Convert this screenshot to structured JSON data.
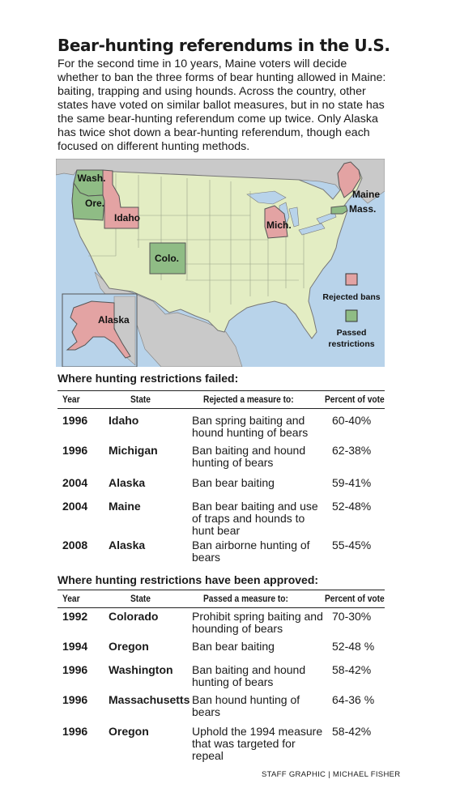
{
  "title": "Bear-hunting referendums in the U.S.",
  "intro": "For the second time in 10 years, Maine voters will decide whether to ban the three forms of bear hunting allowed in Maine: baiting, trapping and using hounds. Across the country, other states have voted on similar ballot measures, but in no state has the same bear-hunting referendum come up twice. Only Alaska has twice shot down a bear-hunting referendum, though each focused on different hunting methods.",
  "map": {
    "labels": {
      "wash": "Wash.",
      "ore": "Ore.",
      "idaho": "Idaho",
      "colo": "Colo.",
      "mich": "Mich.",
      "maine": "Maine",
      "mass": "Mass.",
      "alaska": "Alaska"
    },
    "legend": {
      "rejected": "Rejected bans",
      "passed": "Passed restrictions"
    },
    "colors": {
      "rejected": "#e3a3a3",
      "passed": "#8fbc85",
      "base": "#e3edc3",
      "water": "#b8d3ea",
      "other_land": "#c9c9c9"
    }
  },
  "chart_data": [
    {
      "type": "table",
      "title": "Where hunting restrictions failed:",
      "columns": [
        "Year",
        "State",
        "Rejected a measure to:",
        "Percent of vote"
      ],
      "rows": [
        {
          "year": "1996",
          "state": "Idaho",
          "measure": "Ban spring baiting and hound hunting of bears",
          "pct": "60-40%",
          "for": 40,
          "against": 60
        },
        {
          "year": "1996",
          "state": "Michigan",
          "measure": "Ban baiting and hound hunting of bears",
          "pct": "62-38%",
          "for": 38,
          "against": 62
        },
        {
          "year": "2004",
          "state": "Alaska",
          "measure": "Ban bear baiting",
          "pct": "59-41%",
          "for": 41,
          "against": 59
        },
        {
          "year": "2004",
          "state": "Maine",
          "measure": "Ban bear baiting and use of traps and hounds to hunt bear",
          "pct": "52-48%",
          "for": 48,
          "against": 52
        },
        {
          "year": "2008",
          "state": "Alaska",
          "measure": "Ban airborne hunting of bears",
          "pct": "55-45%",
          "for": 45,
          "against": 55
        }
      ]
    },
    {
      "type": "table",
      "title": "Where hunting restrictions have been approved:",
      "columns": [
        "Year",
        "State",
        "Passed a measure to:",
        "Percent of vote"
      ],
      "rows": [
        {
          "year": "1992",
          "state": "Colorado",
          "measure": "Prohibit spring baiting and hounding of bears",
          "pct": "70-30%",
          "for": 70,
          "against": 30
        },
        {
          "year": "1994",
          "state": "Oregon",
          "measure": "Ban bear baiting",
          "pct": "52-48 %",
          "for": 52,
          "against": 48
        },
        {
          "year": "1996",
          "state": "Washington",
          "measure": "Ban baiting and hound hunting of bears",
          "pct": "58-42%",
          "for": 58,
          "against": 42
        },
        {
          "year": "1996",
          "state": "Massachusetts",
          "measure": "Ban hound hunting of bears",
          "pct": "64-36 %",
          "for": 64,
          "against": 36
        },
        {
          "year": "1996",
          "state": "Oregon",
          "measure": "Uphold the 1994 measure that was targeted for repeal",
          "pct": "58-42%",
          "for": 58,
          "against": 42
        }
      ]
    }
  ],
  "credit": "STAFF GRAPHIC | MICHAEL FISHER"
}
